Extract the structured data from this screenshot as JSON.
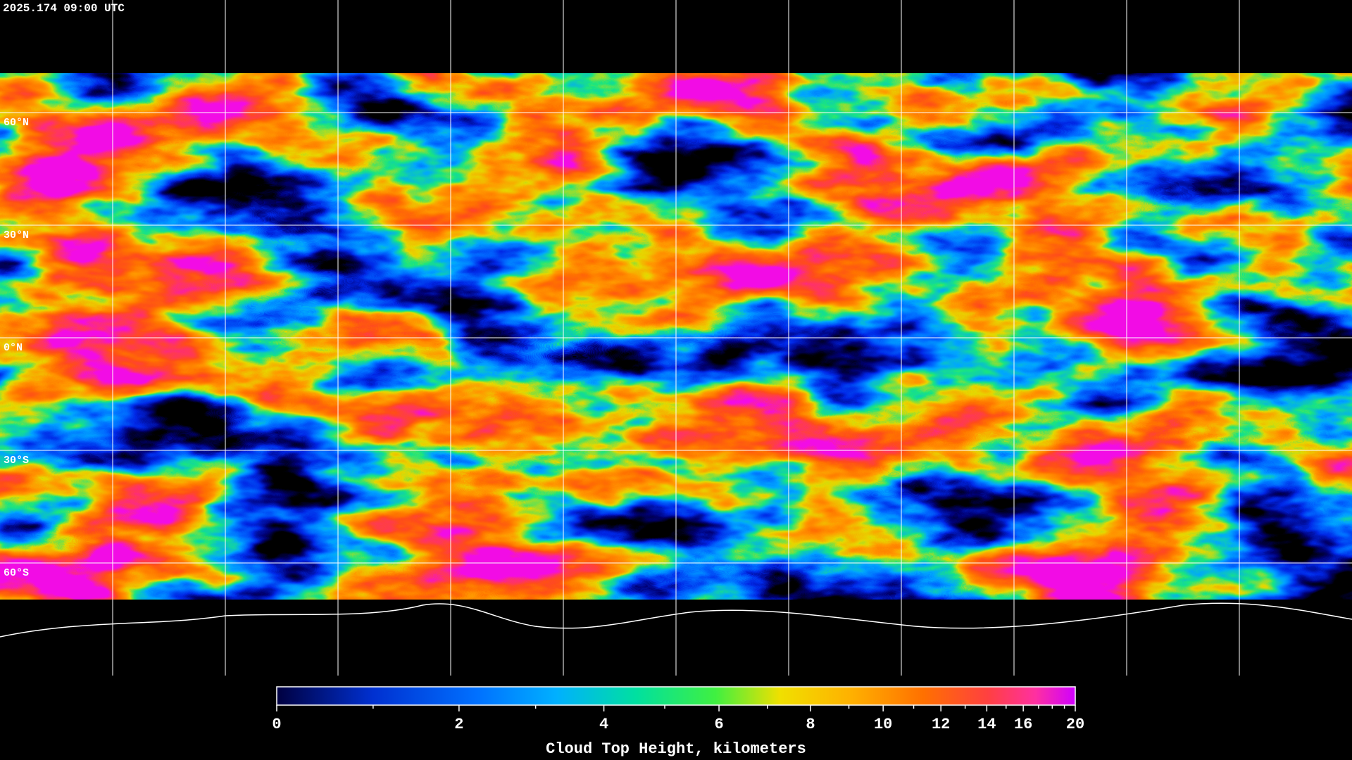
{
  "title": "2025.174 09:00 UTC",
  "map": {
    "lat_range": [
      -90,
      90
    ],
    "lon_range": [
      -180,
      180
    ],
    "latitudes": [
      {
        "value": 60,
        "label": "60°N"
      },
      {
        "value": 30,
        "label": "30°N"
      },
      {
        "value": 0,
        "label": "0°N"
      },
      {
        "value": -30,
        "label": "30°S"
      },
      {
        "value": -60,
        "label": "60°S"
      }
    ],
    "longitudes": [
      -150,
      -120,
      -90,
      -60,
      -30,
      0,
      30,
      60,
      90,
      120,
      150
    ]
  },
  "colorbar": {
    "label": "Cloud Top Height, kilometers",
    "range": [
      0,
      20
    ],
    "ticks": [
      0,
      2,
      4,
      6,
      8,
      10,
      12,
      14,
      16,
      20
    ],
    "minor_ticks": [
      1,
      3,
      5,
      7,
      9,
      11,
      13,
      15,
      17,
      18,
      19
    ]
  }
}
